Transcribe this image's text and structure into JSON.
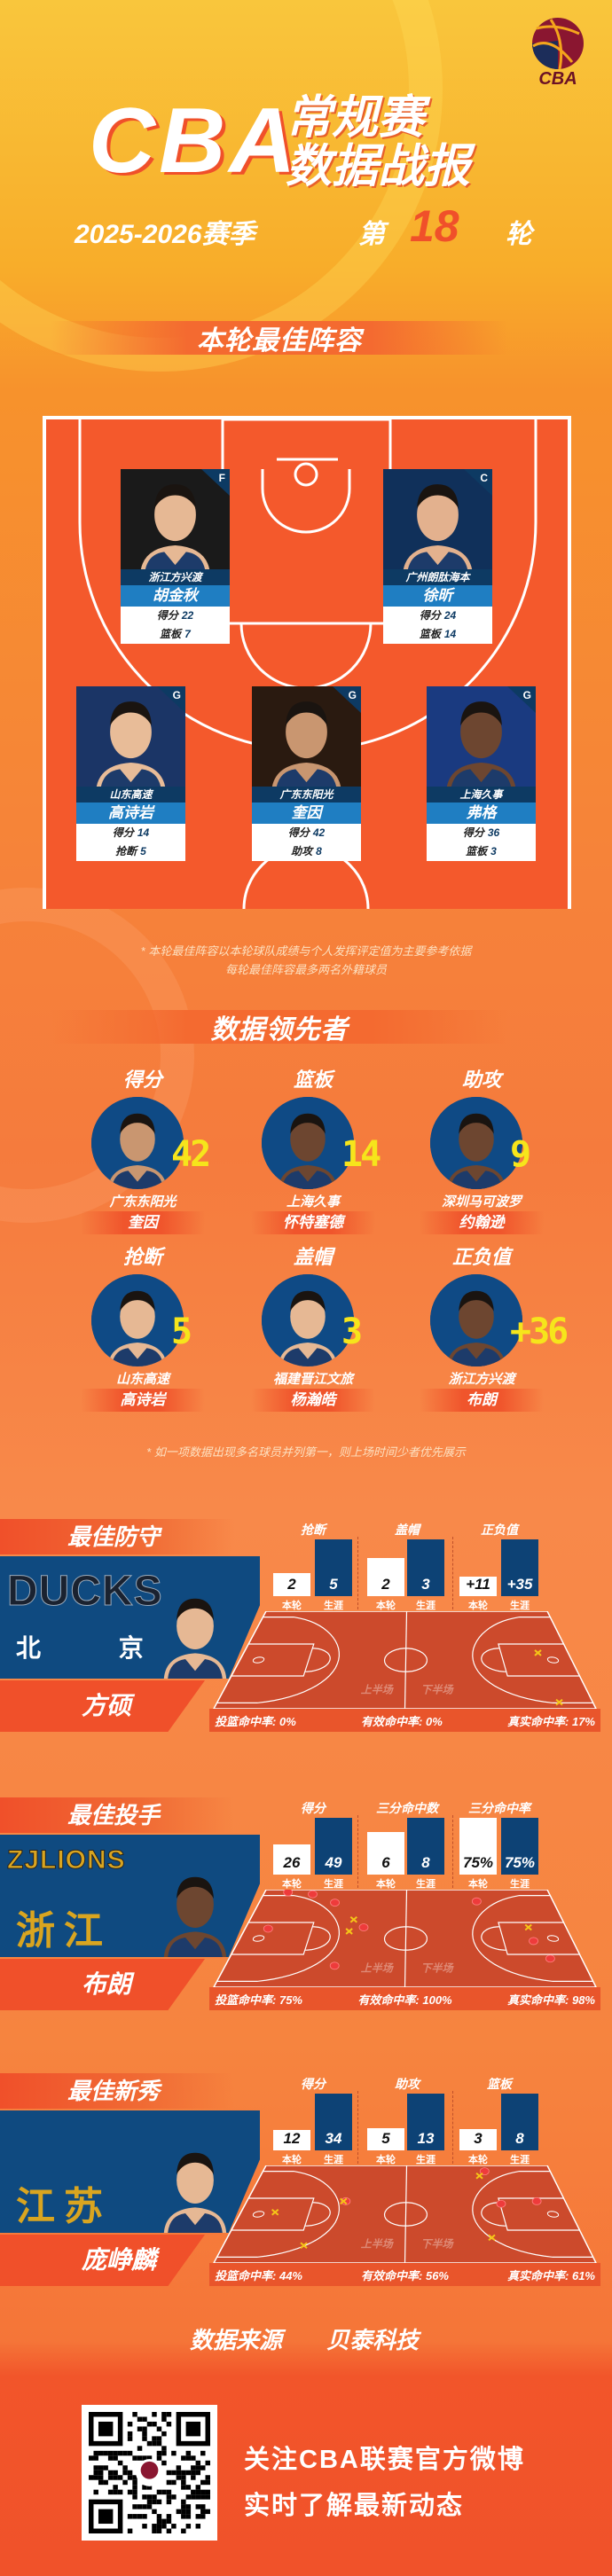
{
  "header": {
    "logo_text": "CBA",
    "title_main": "CBA",
    "title_line1": "常规赛",
    "title_line2": "数据战报",
    "season": "2025-2026赛季",
    "round_prefix": "第",
    "round_number": "18",
    "round_suffix": "轮"
  },
  "lineup": {
    "title": "本轮最佳阵容",
    "players": [
      {
        "pos": "F",
        "team": "浙江方兴渡",
        "name": "胡金秋",
        "stats": [
          {
            "label": "得分",
            "value": "22"
          },
          {
            "label": "篮板",
            "value": "7"
          }
        ]
      },
      {
        "pos": "C",
        "team": "广州朗肽海本",
        "name": "徐昕",
        "stats": [
          {
            "label": "得分",
            "value": "24"
          },
          {
            "label": "篮板",
            "value": "14"
          }
        ]
      },
      {
        "pos": "G",
        "team": "山东高速",
        "name": "高诗岩",
        "stats": [
          {
            "label": "得分",
            "value": "14"
          },
          {
            "label": "抢断",
            "value": "5"
          }
        ]
      },
      {
        "pos": "G",
        "team": "广东东阳光",
        "name": "奎因",
        "stats": [
          {
            "label": "得分",
            "value": "42"
          },
          {
            "label": "助攻",
            "value": "8"
          }
        ]
      },
      {
        "pos": "G",
        "team": "上海久事",
        "name": "弗格",
        "stats": [
          {
            "label": "得分",
            "value": "36"
          },
          {
            "label": "篮板",
            "value": "3"
          }
        ]
      }
    ],
    "notes": [
      "* 本轮最佳阵容以本轮球队成绩与个人发挥评定值为主要参考依据",
      "每轮最佳阵容最多两名外籍球员"
    ]
  },
  "leaders": {
    "title": "数据领先者",
    "items": [
      {
        "category": "得分",
        "value": "42",
        "team": "广东东阳光",
        "name": "奎因"
      },
      {
        "category": "篮板",
        "value": "14",
        "team": "上海久事",
        "name": "怀特塞德"
      },
      {
        "category": "助攻",
        "value": "9",
        "team": "深圳马可波罗",
        "name": "约翰逊"
      },
      {
        "category": "抢断",
        "value": "5",
        "team": "山东高速",
        "name": "高诗岩"
      },
      {
        "category": "盖帽",
        "value": "3",
        "team": "福建晋江文旅",
        "name": "杨瀚皓"
      },
      {
        "category": "正负值",
        "value": "+36",
        "team": "浙江方兴渡",
        "name": "布朗"
      }
    ],
    "note": "* 如一项数据出现多名球员并列第一，则上场时间少者优先展示"
  },
  "awards": [
    {
      "title": "最佳防守",
      "name": "方硕",
      "logo_text": "DUCKS",
      "logo_sub": "北 京",
      "metrics": [
        {
          "label": "抢断",
          "round": "2",
          "career": "5"
        },
        {
          "label": "盖帽",
          "round": "2",
          "career": "3"
        },
        {
          "label": "正负值",
          "round": "+11",
          "career": "+35"
        }
      ],
      "shooting": [
        {
          "label": "投篮命中率:",
          "value": "0%"
        },
        {
          "label": "有效命中率:",
          "value": "0%"
        },
        {
          "label": "真实命中率:",
          "value": "17%"
        }
      ],
      "shots": {
        "made": [],
        "missed": [
          [
            25.4,
            6.4
          ],
          [
            25.5,
            14.0
          ]
        ]
      }
    },
    {
      "title": "最佳投手",
      "name": "布朗",
      "logo_text": "ZJLIONS",
      "logo_sub": "浙江",
      "metrics": [
        {
          "label": "得分",
          "round": "26",
          "career": "49"
        },
        {
          "label": "三分命中数",
          "round": "6",
          "career": "8"
        },
        {
          "label": "三分命中率",
          "round": "75%",
          "career": "75%"
        }
      ],
      "shooting": [
        {
          "label": "投篮命中率:",
          "value": "75%"
        },
        {
          "label": "有效命中率:",
          "value": "100%"
        },
        {
          "label": "真实命中率:",
          "value": "98%"
        }
      ],
      "shots": {
        "made": [
          [
            2.3,
            0.4
          ],
          [
            4.8,
            0.7
          ],
          [
            7.2,
            2.0
          ],
          [
            10.3,
            5.8
          ],
          [
            2.0,
            6.0
          ],
          [
            8.5,
            11.7
          ],
          [
            20.7,
            1.8
          ],
          [
            24.7,
            7.9
          ],
          [
            25.5,
            10.6
          ]
        ],
        "missed": [
          [
            9.3,
            4.6
          ],
          [
            9.1,
            6.4
          ],
          [
            24.7,
            5.8
          ]
        ]
      }
    },
    {
      "title": "最佳新秀",
      "name": "庞峥麟",
      "logo_text": "",
      "logo_sub": "江苏",
      "metrics": [
        {
          "label": "得分",
          "round": "12",
          "career": "34"
        },
        {
          "label": "助攻",
          "round": "5",
          "career": "13"
        },
        {
          "label": "篮板",
          "round": "3",
          "career": "8"
        }
      ],
      "shooting": [
        {
          "label": "投篮命中率:",
          "value": "44%"
        },
        {
          "label": "有效命中率:",
          "value": "56%"
        },
        {
          "label": "真实命中率:",
          "value": "61%"
        }
      ],
      "shots": {
        "made": [
          [
            8.7,
            5.5
          ],
          [
            21.6,
            0.9
          ],
          [
            22.3,
            5.9
          ],
          [
            25.5,
            5.5
          ]
        ],
        "missed": [
          [
            8.5,
            5.5
          ],
          [
            2.9,
            7.2
          ],
          [
            6.2,
            12.3
          ],
          [
            21.0,
            1.6
          ],
          [
            20.8,
            11.1
          ]
        ]
      }
    }
  ],
  "award_labels": {
    "round": "本轮",
    "career": "生涯",
    "first_half": "上半场",
    "second_half": "下半场"
  },
  "footer": {
    "source_label": "数据来源",
    "source_name": "贝泰科技",
    "line1": "关注CBA联赛官方微博",
    "line2": "实时了解最新动态"
  },
  "colors": {
    "court": "#f4592c",
    "navy": "#0d3a63",
    "name_blue": "#1f7ec2",
    "leader_value": "#f6e51b",
    "round_highlight": "#f0502a"
  }
}
